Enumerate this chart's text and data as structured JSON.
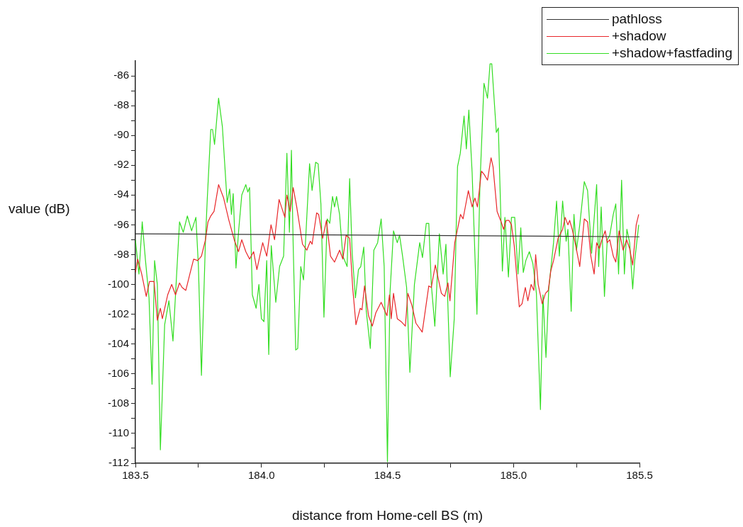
{
  "chart_data": {
    "type": "line",
    "xlabel": "distance from Home-cell BS (m)",
    "ylabel": "value (dB)",
    "xlim": [
      183.5,
      185.5
    ],
    "ylim": [
      -112,
      -85
    ],
    "xticks": [
      {
        "value": 183.5,
        "label": "183.5"
      },
      {
        "value": 183.75,
        "label": null
      },
      {
        "value": 184,
        "label": "184.0"
      },
      {
        "value": 184.25,
        "label": null
      },
      {
        "value": 184.5,
        "label": "184.5"
      },
      {
        "value": 184.75,
        "label": null
      },
      {
        "value": 185,
        "label": "185.0"
      },
      {
        "value": 185.25,
        "label": null
      },
      {
        "value": 185.5,
        "label": "185.5"
      }
    ],
    "yticks": [
      -112,
      {
        "value": -111,
        "label": null
      },
      -110,
      {
        "value": -109,
        "label": null
      },
      -108,
      {
        "value": -107,
        "label": null
      },
      -106,
      {
        "value": -105,
        "label": null
      },
      -104,
      {
        "value": -103,
        "label": null
      },
      -102,
      {
        "value": -101,
        "label": null
      },
      -100,
      {
        "value": -99,
        "label": null
      },
      -98,
      {
        "value": -97,
        "label": null
      },
      -96,
      {
        "value": -95,
        "label": null
      },
      -94,
      {
        "value": -93,
        "label": null
      },
      -92,
      {
        "value": -91,
        "label": null
      },
      -90,
      {
        "value": -89,
        "label": null
      },
      -88,
      {
        "value": -87,
        "label": null
      },
      -86
    ],
    "grid": false,
    "legend": "top right",
    "marker": "none",
    "line_style": "solid",
    "series": [
      {
        "name": "pathloss",
        "color": "#333333",
        "x": [
          183.5,
          185.5
        ],
        "values": [
          -96.6,
          -96.8
        ]
      },
      {
        "name": "+shadow",
        "color": "#e8272a",
        "x": [
          183.5,
          183.509,
          183.525,
          183.543,
          183.556,
          183.574,
          183.587,
          183.599,
          183.607,
          183.628,
          183.644,
          183.659,
          183.675,
          183.685,
          183.7,
          183.716,
          183.731,
          183.747,
          183.762,
          183.778,
          183.788,
          183.799,
          183.812,
          183.83,
          183.85,
          183.871,
          183.892,
          183.909,
          183.922,
          183.938,
          183.953,
          183.969,
          183.982,
          184.005,
          184.021,
          184.038,
          184.052,
          184.07,
          184.093,
          184.101,
          184.114,
          184.126,
          184.14,
          184.153,
          184.163,
          184.18,
          184.194,
          184.201,
          184.219,
          184.227,
          184.243,
          184.258,
          184.274,
          184.29,
          184.31,
          184.323,
          184.336,
          184.35,
          184.362,
          184.375,
          184.392,
          184.399,
          184.409,
          184.425,
          184.44,
          184.454,
          184.475,
          184.498,
          184.508,
          184.515,
          184.524,
          184.539,
          184.555,
          184.571,
          184.581,
          184.597,
          184.613,
          184.638,
          184.664,
          184.674,
          184.69,
          184.714,
          184.727,
          184.74,
          184.748,
          184.767,
          184.79,
          184.8,
          184.821,
          184.836,
          184.847,
          184.857,
          184.873,
          184.883,
          184.897,
          184.911,
          184.919,
          184.935,
          184.951,
          184.961,
          184.971,
          184.982,
          184.992,
          185.003,
          185.023,
          185.034,
          185.047,
          185.057,
          185.07,
          185.081,
          185.088,
          185.098,
          185.114,
          185.127,
          185.138,
          185.148,
          185.159,
          185.177,
          185.195,
          185.205,
          185.216,
          185.223,
          185.233,
          185.247,
          185.263,
          185.281,
          185.294,
          185.307,
          185.32,
          185.33,
          185.341,
          185.351,
          185.364,
          185.372,
          185.382,
          185.396,
          185.406,
          185.419,
          185.435,
          185.449,
          185.461,
          185.473,
          185.487,
          185.497
        ],
        "values": [
          -99.2,
          -98.3,
          -99.3,
          -100.8,
          -99.8,
          -99.8,
          -102.4,
          -101.6,
          -102.3,
          -100.7,
          -100.0,
          -100.7,
          -99.9,
          -100.2,
          -100.4,
          -99.3,
          -98.3,
          -98.4,
          -98.1,
          -97.0,
          -95.8,
          -95.4,
          -95.1,
          -93.3,
          -94.2,
          -95.7,
          -97.0,
          -97.8,
          -97.0,
          -97.8,
          -98.3,
          -97.8,
          -99.0,
          -97.2,
          -98.1,
          -96.0,
          -97.0,
          -94.3,
          -95.5,
          -94.0,
          -95.1,
          -93.5,
          -94.8,
          -96.2,
          -97.3,
          -97.7,
          -97.1,
          -97.3,
          -95.2,
          -95.3,
          -96.9,
          -95.7,
          -98.1,
          -98.5,
          -97.7,
          -98.3,
          -96.7,
          -96.9,
          -100.2,
          -102.7,
          -101.6,
          -101.7,
          -100.1,
          -102.1,
          -102.8,
          -101.9,
          -101.2,
          -102.1,
          -100.7,
          -102.3,
          -100.6,
          -102.3,
          -102.5,
          -102.8,
          -100.6,
          -101.4,
          -102.6,
          -103.2,
          -100.1,
          -100.2,
          -98.7,
          -100.6,
          -100.8,
          -99.9,
          -101.1,
          -97.2,
          -95.3,
          -95.6,
          -93.7,
          -94.8,
          -94.2,
          -94.8,
          -92.4,
          -92.6,
          -93.0,
          -91.5,
          -92.1,
          -95.1,
          -95.8,
          -96.3,
          -95.7,
          -95.7,
          -96.0,
          -97.4,
          -101.5,
          -101.3,
          -100.2,
          -101.1,
          -100.0,
          -100.4,
          -98.0,
          -100.0,
          -101.3,
          -100.6,
          -100.4,
          -99.1,
          -98.4,
          -96.9,
          -96.3,
          -95.5,
          -96.0,
          -95.7,
          -96.3,
          -97.4,
          -98.8,
          -95.6,
          -95.8,
          -98.1,
          -99.3,
          -97.2,
          -97.6,
          -97.0,
          -96.4,
          -97.2,
          -97.0,
          -98.1,
          -98.5,
          -96.4,
          -97.7,
          -97.0,
          -97.6,
          -98.7,
          -96.0,
          -95.3
        ]
      },
      {
        "name": "+shadow+fastfading",
        "color": "#33dd22",
        "x": [
          183.5,
          183.514,
          183.527,
          183.54,
          183.554,
          183.566,
          183.576,
          183.587,
          183.599,
          183.616,
          183.633,
          183.649,
          183.675,
          183.69,
          183.706,
          183.723,
          183.74,
          183.75,
          183.762,
          183.778,
          183.785,
          183.799,
          183.806,
          183.814,
          183.83,
          183.845,
          183.864,
          183.874,
          183.881,
          183.888,
          183.899,
          183.91,
          183.922,
          183.938,
          183.946,
          183.953,
          183.964,
          183.979,
          183.99,
          184.0,
          184.01,
          184.021,
          184.029,
          184.039,
          184.057,
          184.072,
          184.088,
          184.101,
          184.111,
          184.119,
          184.126,
          184.136,
          184.144,
          184.156,
          184.167,
          184.191,
          184.201,
          184.215,
          184.225,
          184.236,
          184.248,
          184.261,
          184.271,
          184.282,
          184.29,
          184.298,
          184.31,
          184.323,
          184.34,
          184.35,
          184.36,
          184.373,
          184.385,
          184.394,
          184.406,
          184.416,
          184.432,
          184.446,
          184.461,
          184.475,
          184.487,
          184.5,
          184.51,
          184.524,
          184.539,
          184.548,
          184.56,
          184.576,
          184.589,
          184.607,
          184.628,
          184.639,
          184.654,
          184.664,
          184.674,
          184.688,
          184.706,
          184.721,
          184.732,
          184.749,
          184.765,
          184.778,
          184.789,
          184.804,
          184.813,
          184.823,
          184.836,
          184.855,
          184.867,
          184.883,
          184.897,
          184.907,
          184.914,
          184.932,
          184.94,
          184.956,
          184.966,
          184.98,
          184.992,
          185.005,
          185.018,
          185.029,
          185.039,
          185.049,
          185.063,
          185.077,
          185.091,
          185.107,
          185.117,
          185.129,
          185.14,
          185.159,
          185.171,
          185.182,
          185.195,
          185.209,
          185.216,
          185.229,
          185.24,
          185.25,
          185.263,
          185.281,
          185.294,
          185.31,
          185.33,
          185.338,
          185.348,
          185.361,
          185.372,
          185.382,
          185.396,
          185.406,
          185.417,
          185.429,
          185.44,
          185.45,
          185.461,
          185.473,
          185.481,
          185.497
        ],
        "values": [
          -97.0,
          -99.3,
          -95.8,
          -98.4,
          -100.9,
          -106.7,
          -98.4,
          -100.0,
          -111.1,
          -102.7,
          -101.1,
          -103.8,
          -95.8,
          -96.5,
          -95.4,
          -96.4,
          -95.5,
          -98.8,
          -106.1,
          -97.0,
          -94.3,
          -89.6,
          -89.6,
          -90.6,
          -87.5,
          -89.4,
          -94.5,
          -93.6,
          -95.3,
          -93.9,
          -98.9,
          -96.3,
          -94.0,
          -93.3,
          -93.8,
          -93.5,
          -100.7,
          -101.6,
          -100.0,
          -102.3,
          -102.5,
          -98.4,
          -104.7,
          -97.4,
          -101.2,
          -98.8,
          -98.1,
          -91.2,
          -96.5,
          -91.0,
          -97.4,
          -104.4,
          -104.3,
          -98.8,
          -99.7,
          -91.9,
          -93.7,
          -91.8,
          -91.9,
          -94.6,
          -102.2,
          -95.6,
          -95.9,
          -94.1,
          -94.8,
          -94.1,
          -95.3,
          -98.1,
          -98.8,
          -92.9,
          -97.9,
          -100.9,
          -99.0,
          -98.8,
          -97.5,
          -101.8,
          -104.3,
          -97.7,
          -97.2,
          -95.6,
          -98.8,
          -111.9,
          -100.6,
          -96.4,
          -97.2,
          -96.7,
          -98.1,
          -100.2,
          -105.9,
          -100.0,
          -97.2,
          -98.2,
          -95.9,
          -95.9,
          -100.0,
          -102.8,
          -96.6,
          -99.3,
          -97.3,
          -106.2,
          -102.3,
          -92.1,
          -91.2,
          -88.7,
          -90.9,
          -88.3,
          -92.5,
          -102.0,
          -93.3,
          -86.5,
          -87.5,
          -85.2,
          -85.2,
          -89.8,
          -89.5,
          -99.1,
          -95.5,
          -99.5,
          -95.5,
          -95.5,
          -99.3,
          -96.2,
          -99.2,
          -98.4,
          -97.8,
          -98.6,
          -100.6,
          -108.4,
          -100.7,
          -104.9,
          -100.3,
          -97.2,
          -94.4,
          -98.1,
          -94.4,
          -97.1,
          -96.3,
          -101.8,
          -95.3,
          -97.7,
          -96.0,
          -93.1,
          -93.7,
          -97.9,
          -93.3,
          -98.8,
          -94.8,
          -100.8,
          -97.0,
          -96.7,
          -95.3,
          -94.6,
          -99.3,
          -93.0,
          -99.3,
          -96.3,
          -97.2,
          -100.3,
          -98.4,
          -96.0
        ]
      }
    ]
  }
}
